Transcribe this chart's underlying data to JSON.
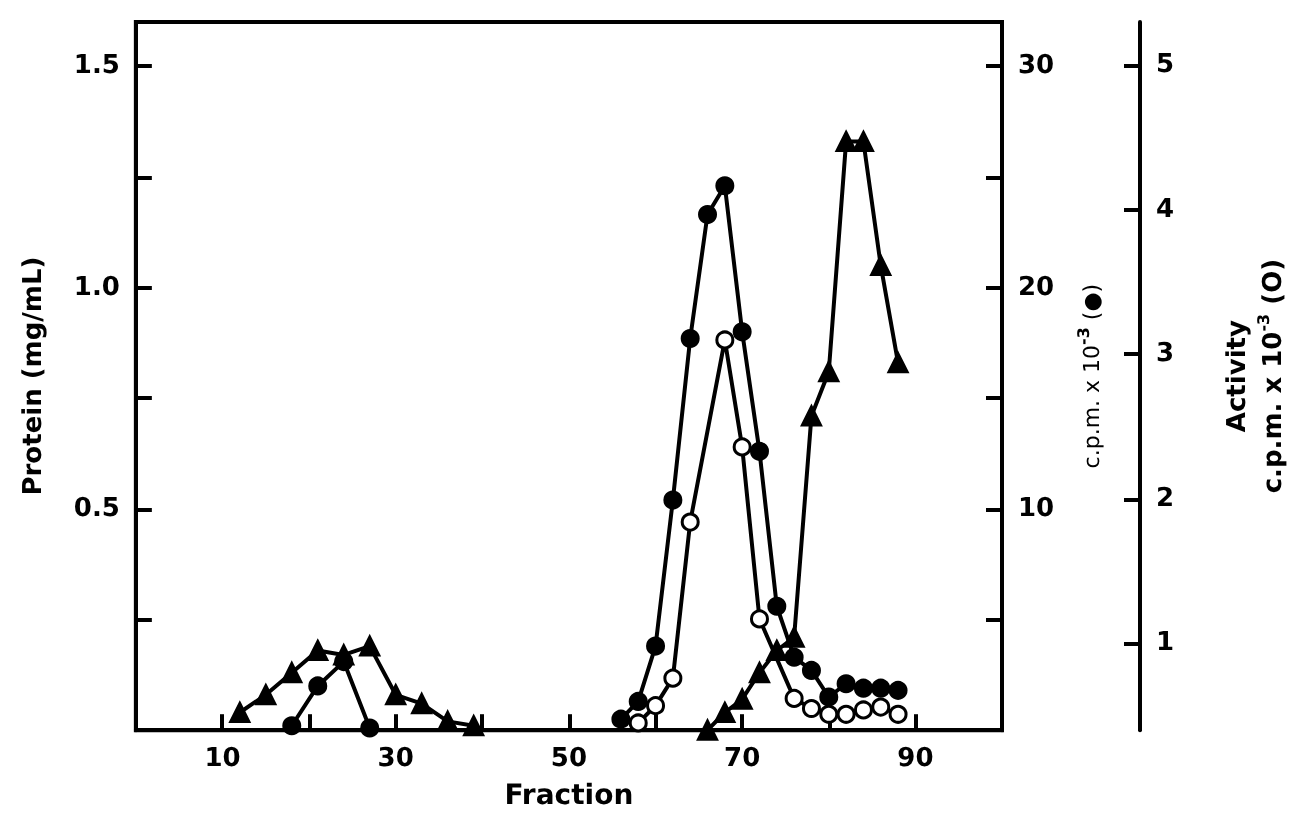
{
  "chart_data": {
    "type": "line",
    "xlabel": "Fraction",
    "ylabel": "Protein (mg/mL)",
    "y2label": "c.p.m. x 10$^{-3}$ (●)",
    "y3label": "Activity\nc.p.m. x 10$^{-3}$ (O)",
    "xlim": [
      0,
      100
    ],
    "xticks": [
      10,
      {
        "value": 20,
        "label": null
      },
      30,
      {
        "value": 40,
        "label": null
      },
      50,
      {
        "value": 60,
        "label": null
      },
      70,
      {
        "value": 80,
        "label": null
      },
      90
    ],
    "ylim": [
      0,
      1.6
    ],
    "yticks": [
      {
        "value": 0.25,
        "label": null
      },
      0.5,
      {
        "value": 0.75,
        "label": null
      },
      "1.0",
      {
        "value": 1.25,
        "label": null
      },
      1.5
    ],
    "y2lim": [
      0,
      32
    ],
    "y2ticks": [
      {
        "value": 5,
        "label": null
      },
      10,
      {
        "value": 15,
        "label": null
      },
      20,
      {
        "value": 25,
        "label": null
      },
      30
    ],
    "y3lim": [
      0.4,
      5.3
    ],
    "y3ticks": [
      1,
      2,
      3,
      4,
      5
    ],
    "series": [
      {
        "color": "#000000",
        "marker": "triangle",
        "x": [
          12,
          15,
          18,
          21,
          24,
          27,
          30,
          33,
          36,
          39,
          50,
          66,
          68,
          70,
          72,
          74,
          76,
          78,
          80,
          82,
          84,
          86,
          88
        ],
        "values": [
          0.04,
          0.08,
          0.13,
          0.18,
          0.17,
          0.19,
          0.08,
          0.06,
          0.02,
          0.01,
          null,
          0.0,
          0.04,
          0.07,
          0.13,
          0.18,
          0.21,
          0.71,
          0.81,
          1.33,
          1.33,
          1.05,
          0.83
        ]
      },
      {
        "color": "#000000",
        "marker": "circle",
        "axis": "y2",
        "x": [
          18,
          21,
          24,
          27,
          40,
          56,
          58,
          60,
          62,
          64,
          66,
          68,
          70,
          72,
          74,
          76,
          78,
          80,
          82,
          84,
          86,
          88
        ],
        "values": [
          0.2,
          2.0,
          3.1,
          0.1,
          null,
          0.5,
          1.3,
          3.8,
          10.4,
          17.7,
          23.3,
          24.6,
          18.0,
          12.6,
          5.6,
          3.3,
          2.7,
          1.5,
          2.1,
          1.9,
          1.9,
          1.8
        ]
      },
      {
        "color": "#ffffff",
        "marker": "circle",
        "axis": "y3",
        "x": [
          58,
          60,
          62,
          64,
          68,
          70,
          72,
          76,
          78,
          80,
          82,
          84,
          86,
          88
        ],
        "values": [
          0.45,
          0.57,
          0.76,
          1.84,
          3.1,
          2.36,
          1.17,
          0.62,
          0.55,
          0.51,
          0.51,
          0.54,
          0.56,
          0.51
        ]
      }
    ]
  }
}
